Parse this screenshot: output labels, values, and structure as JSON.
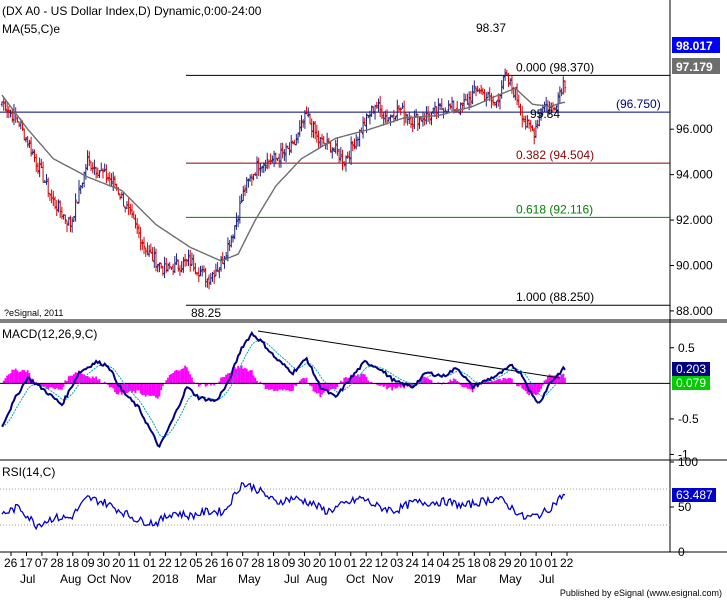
{
  "chart_data": {
    "type": "line",
    "main": {
      "title": "(DX A0 - US Dollar Index,D) Dynamic,0:00-24:00",
      "ma_label": "MA(55,C)e",
      "ylim": [
        87.6,
        101.6
      ],
      "y_ticks": [
        "88.000",
        "90.000",
        "92.000",
        "94.000",
        "96.000"
      ],
      "price_badge": "98.017",
      "ma_badge": "97.179",
      "price_color": "#0000ff",
      "ma_color": "#6e6e6e",
      "candle_up_color": "#1a237e",
      "candle_down_color": "#d50000",
      "levels": [
        {
          "value": 98.37,
          "label": "0.000 (98.370)",
          "color": "#000000"
        },
        {
          "value": 96.75,
          "label": "(96.750)",
          "color": "#000080"
        },
        {
          "value": 94.504,
          "label": "0.382 (94.504)",
          "color": "#8b0000"
        },
        {
          "value": 92.116,
          "label": "0.618 (92.116)",
          "color": "#008000"
        },
        {
          "value": 88.25,
          "label": "1.000 (88.250)",
          "color": "#000000"
        }
      ],
      "annotations": [
        "98.37",
        "95.84",
        "88.25"
      ],
      "close_keypoints": [
        [
          0,
          97.2
        ],
        [
          10,
          96.3
        ],
        [
          20,
          94.6
        ],
        [
          30,
          92.8
        ],
        [
          40,
          91.8
        ],
        [
          50,
          94.6
        ],
        [
          58,
          94.1
        ],
        [
          66,
          93.6
        ],
        [
          75,
          92.2
        ],
        [
          85,
          90.6
        ],
        [
          95,
          89.8
        ],
        [
          103,
          90.0
        ],
        [
          110,
          90.2
        ],
        [
          120,
          89.4
        ],
        [
          128,
          90.1
        ],
        [
          135,
          91.5
        ],
        [
          142,
          93.4
        ],
        [
          150,
          94.5
        ],
        [
          160,
          94.7
        ],
        [
          170,
          95.2
        ],
        [
          178,
          96.6
        ],
        [
          185,
          95.5
        ],
        [
          193,
          95.2
        ],
        [
          200,
          94.6
        ],
        [
          210,
          96.0
        ],
        [
          218,
          97.1
        ],
        [
          225,
          96.5
        ],
        [
          232,
          96.9
        ],
        [
          240,
          96.4
        ],
        [
          250,
          96.6
        ],
        [
          258,
          97.0
        ],
        [
          268,
          96.9
        ],
        [
          278,
          97.8
        ],
        [
          288,
          97.1
        ],
        [
          294,
          98.3
        ],
        [
          300,
          97.6
        ],
        [
          306,
          96.2
        ],
        [
          311,
          95.9
        ],
        [
          316,
          97.1
        ],
        [
          322,
          96.9
        ],
        [
          328,
          98.05
        ]
      ],
      "ma_keypoints": [
        [
          0,
          97.5
        ],
        [
          15,
          96.0
        ],
        [
          30,
          94.7
        ],
        [
          50,
          93.9
        ],
        [
          70,
          93.3
        ],
        [
          90,
          91.8
        ],
        [
          110,
          90.8
        ],
        [
          128,
          90.2
        ],
        [
          138,
          90.5
        ],
        [
          148,
          92.0
        ],
        [
          160,
          93.5
        ],
        [
          175,
          94.7
        ],
        [
          195,
          95.6
        ],
        [
          215,
          96.0
        ],
        [
          235,
          96.5
        ],
        [
          255,
          96.6
        ],
        [
          275,
          97.0
        ],
        [
          290,
          97.5
        ],
        [
          300,
          97.8
        ],
        [
          310,
          97.1
        ],
        [
          320,
          97.0
        ],
        [
          328,
          97.18
        ]
      ]
    },
    "macd": {
      "title": "MACD(12,26,9,C)",
      "ylim": [
        -1.05,
        0.82
      ],
      "y_ticks": [
        "0.5",
        "-0.5",
        "-1"
      ],
      "macd_badge": "0.203",
      "signal_badge": "0.079",
      "macd_color": "#000080",
      "signal_color": "#00aaaa",
      "hist_color": "#ff00ff",
      "keypoints": [
        [
          0,
          -0.6
        ],
        [
          8,
          -0.2
        ],
        [
          15,
          0.08
        ],
        [
          25,
          -0.1
        ],
        [
          35,
          -0.3
        ],
        [
          45,
          0.15
        ],
        [
          55,
          0.3
        ],
        [
          62,
          0.25
        ],
        [
          70,
          -0.1
        ],
        [
          80,
          -0.35
        ],
        [
          92,
          -0.9
        ],
        [
          100,
          -0.5
        ],
        [
          108,
          -0.05
        ],
        [
          115,
          -0.2
        ],
        [
          125,
          -0.25
        ],
        [
          132,
          0.0
        ],
        [
          140,
          0.5
        ],
        [
          146,
          0.7
        ],
        [
          152,
          0.58
        ],
        [
          160,
          0.35
        ],
        [
          170,
          0.15
        ],
        [
          178,
          0.35
        ],
        [
          186,
          -0.05
        ],
        [
          195,
          -0.2
        ],
        [
          203,
          0.05
        ],
        [
          212,
          0.3
        ],
        [
          220,
          0.22
        ],
        [
          230,
          0.02
        ],
        [
          240,
          -0.05
        ],
        [
          248,
          0.15
        ],
        [
          258,
          0.1
        ],
        [
          266,
          0.22
        ],
        [
          275,
          -0.05
        ],
        [
          282,
          0.03
        ],
        [
          290,
          0.12
        ],
        [
          298,
          0.25
        ],
        [
          304,
          0.12
        ],
        [
          310,
          -0.18
        ],
        [
          314,
          -0.28
        ],
        [
          320,
          0.0
        ],
        [
          328,
          0.2
        ]
      ]
    },
    "rsi": {
      "title": "RSI(14,C)",
      "ylim": [
        0,
        100
      ],
      "y_ticks": [
        "100",
        "50",
        "0"
      ],
      "badge": "63.487",
      "color": "#0000cc",
      "keypoints": [
        [
          0,
          42
        ],
        [
          10,
          50
        ],
        [
          20,
          30
        ],
        [
          30,
          38
        ],
        [
          40,
          38
        ],
        [
          50,
          60
        ],
        [
          60,
          55
        ],
        [
          70,
          45
        ],
        [
          80,
          35
        ],
        [
          90,
          32
        ],
        [
          100,
          44
        ],
        [
          110,
          40
        ],
        [
          120,
          45
        ],
        [
          130,
          45
        ],
        [
          140,
          76
        ],
        [
          147,
          72
        ],
        [
          152,
          66
        ],
        [
          160,
          55
        ],
        [
          170,
          60
        ],
        [
          180,
          55
        ],
        [
          190,
          45
        ],
        [
          200,
          53
        ],
        [
          210,
          60
        ],
        [
          220,
          50
        ],
        [
          230,
          46
        ],
        [
          240,
          55
        ],
        [
          250,
          55
        ],
        [
          260,
          56
        ],
        [
          270,
          51
        ],
        [
          280,
          56
        ],
        [
          290,
          60
        ],
        [
          300,
          46
        ],
        [
          305,
          38
        ],
        [
          312,
          40
        ],
        [
          318,
          45
        ],
        [
          328,
          63.5
        ]
      ]
    },
    "x_day_labels": [
      "26",
      "17",
      "07",
      "28",
      "18",
      "09",
      "30",
      "20",
      "11",
      "01",
      "22",
      "12",
      "05",
      "26",
      "16",
      "07",
      "28",
      "18",
      "09",
      "30",
      "20",
      "10",
      "01",
      "22",
      "12",
      "03",
      "24",
      "14",
      "04",
      "25",
      "18",
      "08",
      "29",
      "20",
      "10",
      "01",
      "22"
    ],
    "x_month_labels": [
      "Jul",
      "Aug",
      "Oct",
      "Nov",
      "2018",
      "Mar",
      "May",
      "Jul",
      "Aug",
      "Oct",
      "Nov",
      "2019",
      "Mar",
      "May",
      "Jul"
    ],
    "footer_left": "?eSignal, 2011",
    "footer_right": "Published by eSignal (www.esignal.com)"
  }
}
